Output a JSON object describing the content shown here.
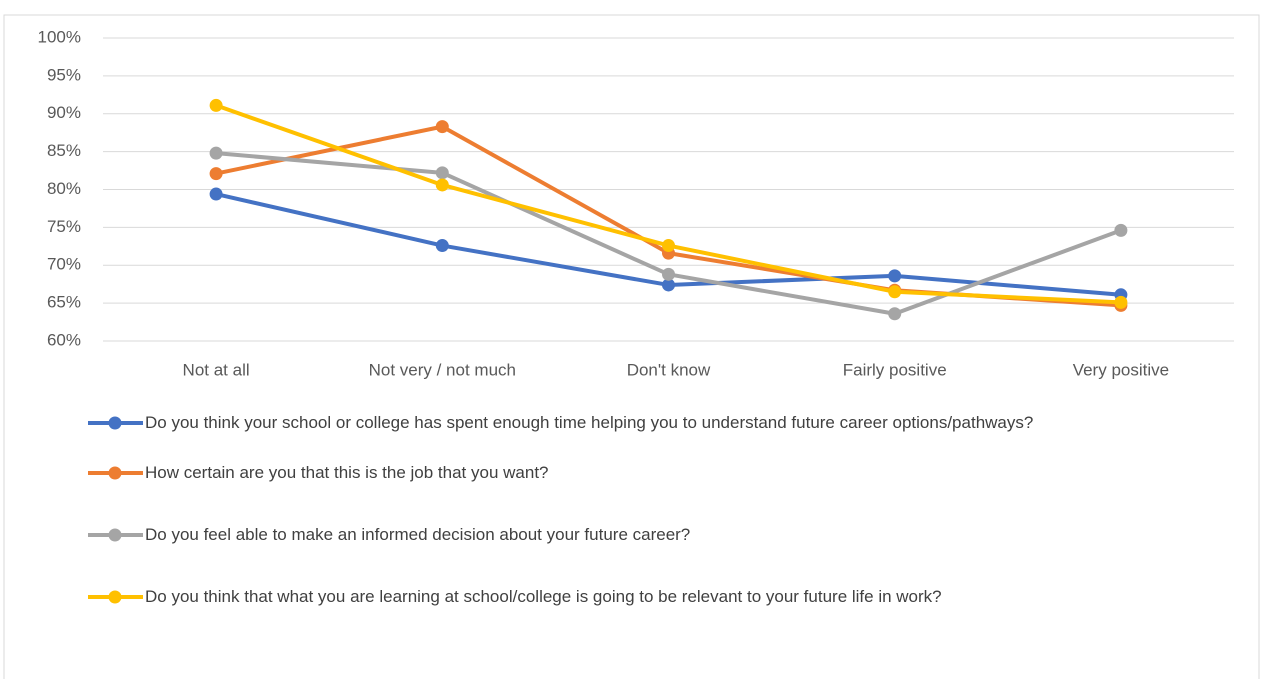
{
  "chart_data": {
    "type": "line",
    "categories": [
      "Not at all",
      "Not very / not much",
      "Don't know",
      "Fairly positive",
      "Very positive"
    ],
    "series": [
      {
        "name": "Do you think your school or college has spent enough time helping you to understand future career options/pathways?",
        "color": "#4472c4",
        "values": [
          79.4,
          72.6,
          67.4,
          68.6,
          66.1
        ]
      },
      {
        "name": "How certain are you that this is the job that you want?",
        "color": "#ed7d31",
        "values": [
          82.1,
          88.3,
          71.6,
          66.7,
          64.7
        ]
      },
      {
        "name": "Do you feel able to make an informed decision about your future career?",
        "color": "#a5a5a5",
        "values": [
          84.8,
          82.2,
          68.8,
          63.6,
          74.6
        ]
      },
      {
        "name": "Do you think that what you are learning at school/college is going to be relevant to your future life in work?",
        "color": "#ffc000",
        "values": [
          91.1,
          80.6,
          72.6,
          66.5,
          65.1
        ]
      }
    ],
    "ylim": [
      60,
      100
    ],
    "yticks": [
      {
        "value": 60,
        "label": "60%"
      },
      {
        "value": 65,
        "label": "65%"
      },
      {
        "value": 70,
        "label": "70%"
      },
      {
        "value": 75,
        "label": "75%"
      },
      {
        "value": 80,
        "label": "80%"
      },
      {
        "value": 85,
        "label": "85%"
      },
      {
        "value": 90,
        "label": "90%"
      },
      {
        "value": 95,
        "label": "95%"
      },
      {
        "value": 100,
        "label": "100%"
      }
    ],
    "grid": true
  }
}
